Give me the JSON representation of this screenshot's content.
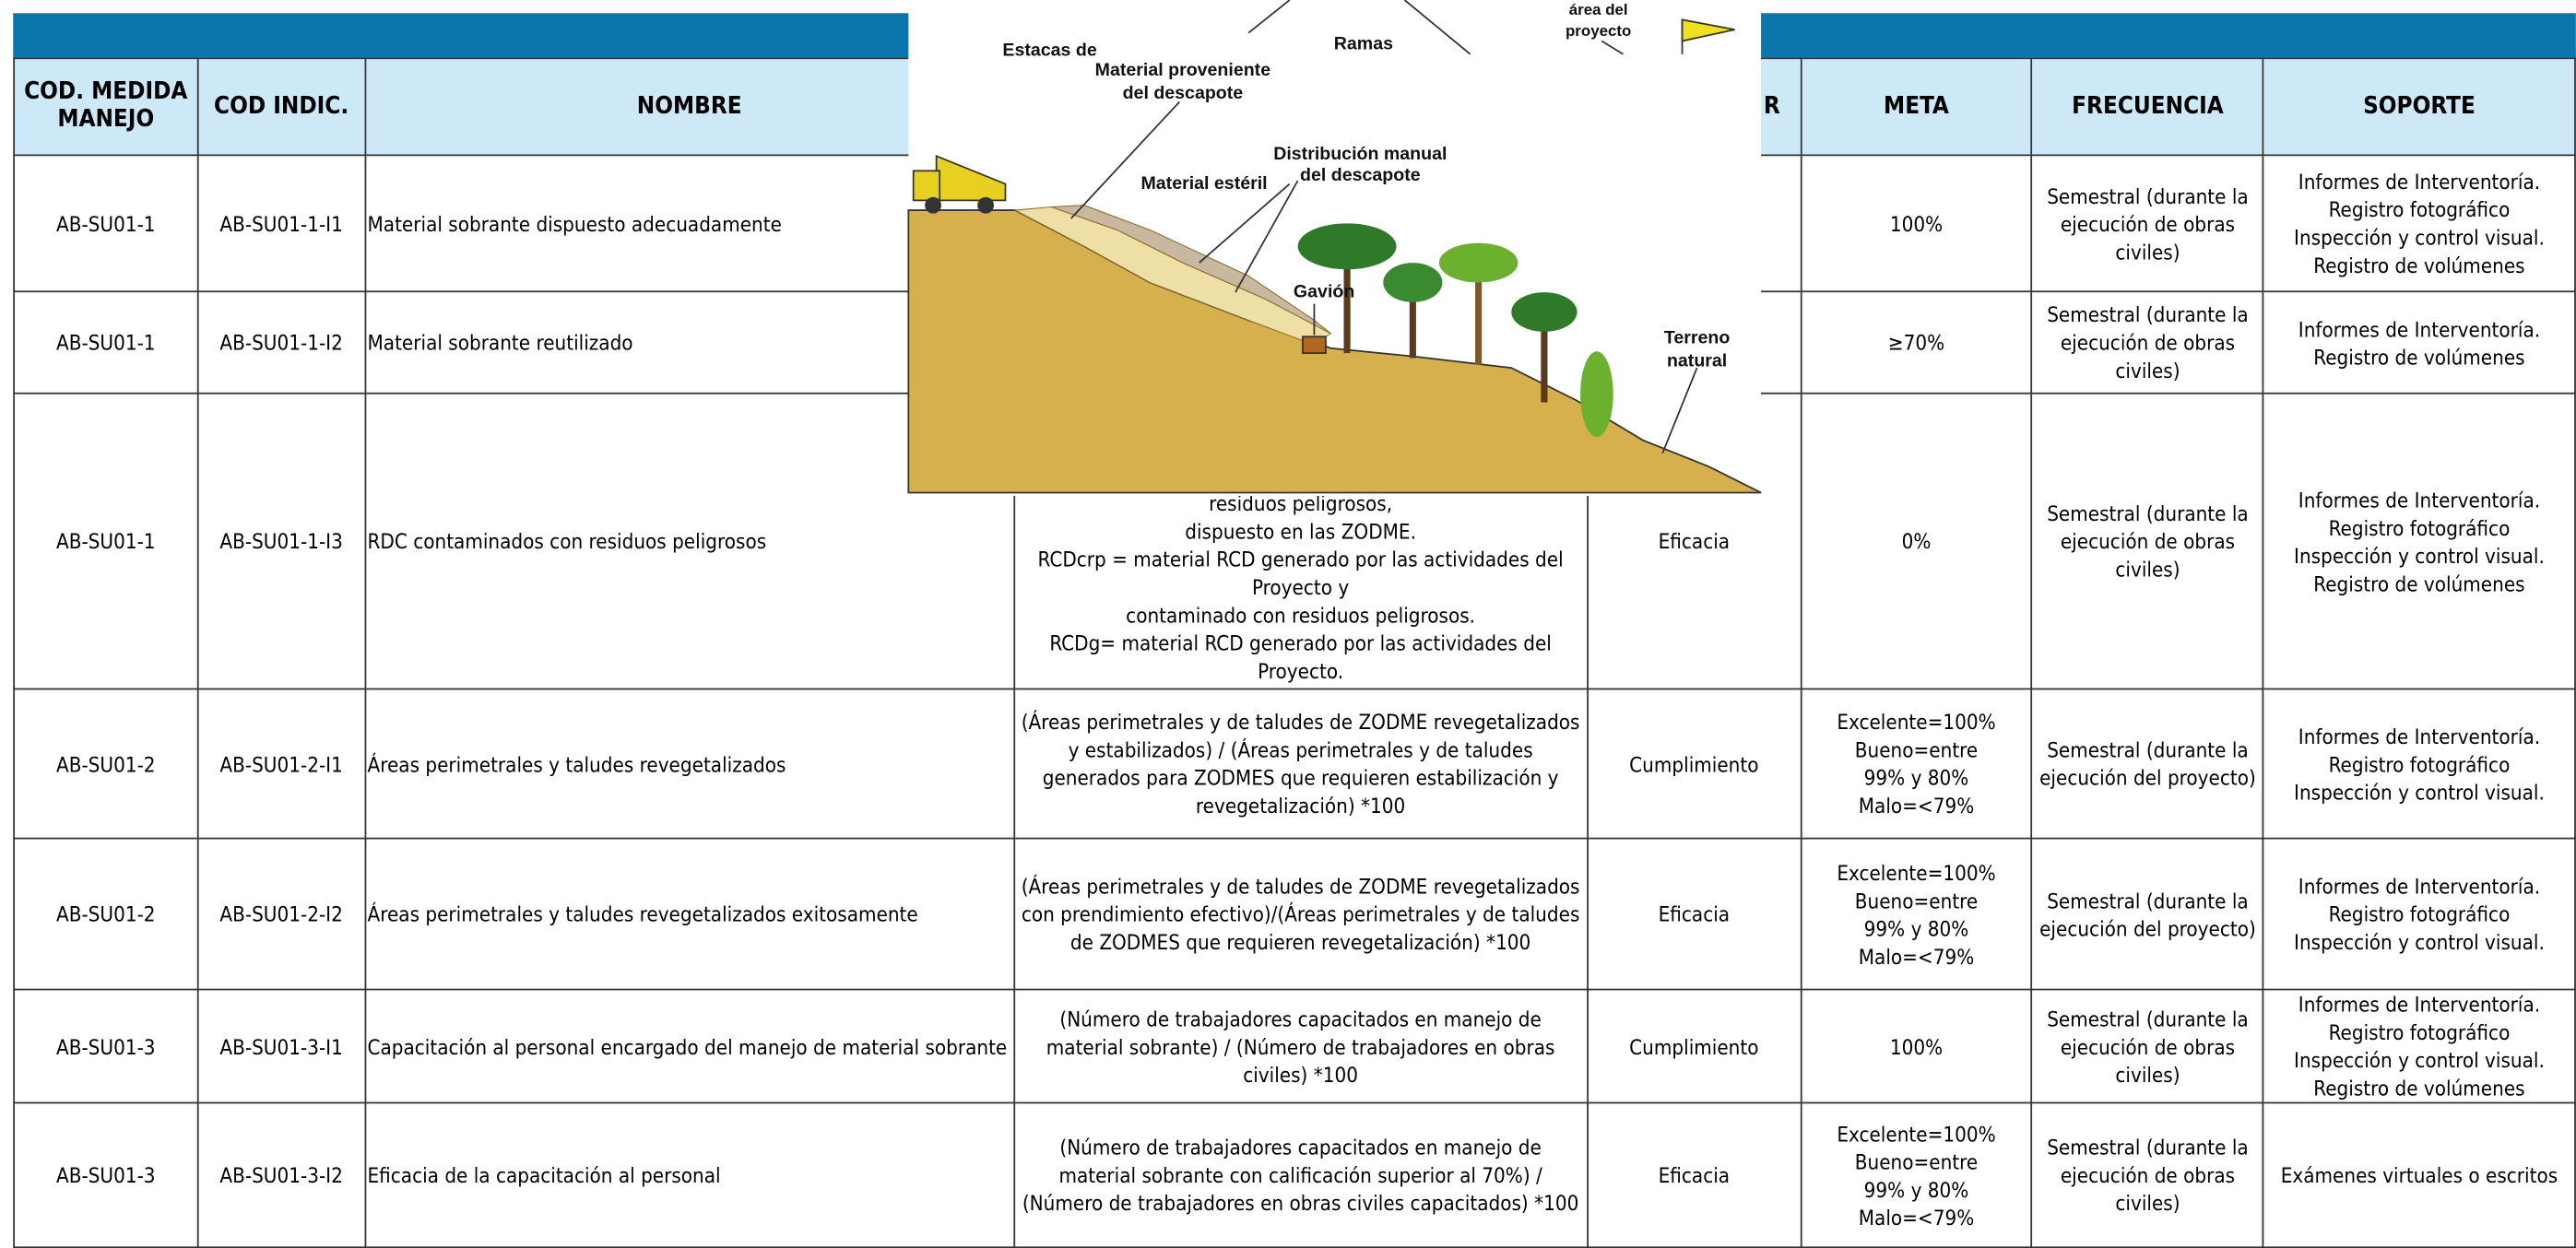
{
  "header": {
    "cod_medida": "COD. MEDIDA\nMANEJO",
    "cod_indic": "COD INDIC.",
    "nombre": "NOMBRE",
    "tipo": "R",
    "meta": "META",
    "frecuencia": "FRECUENCIA",
    "soporte": "SOPORTE"
  },
  "table": {
    "rows": [
      {
        "cod_medida": "AB-SU01-1",
        "cod_indic": "AB-SU01-1-I1",
        "nombre": "Material sobrante dispuesto adecuadamente",
        "meta": "100%",
        "frecuencia": "Semestral (durante la ejecución de obras civiles)",
        "soporte": "Informes de Interventoría.\nRegistro fotográfico\nInspección y control visual.\nRegistro de volúmenes"
      },
      {
        "cod_medida": "AB-SU01-1",
        "cod_indic": "AB-SU01-1-I2",
        "nombre": "Material sobrante reutilizado",
        "meta": "≥70%",
        "frecuencia": "Semestral (durante la ejecución de obras civiles)",
        "soporte": "Informes de Interventoría.\nRegistro de volúmenes"
      },
      {
        "cod_medida": "AB-SU01-1",
        "cod_indic": "AB-SU01-1-I3",
        "nombre": "RDC contaminados con residuos peligrosos",
        "formula": "residuos peligrosos,\ndispuesto en las ZODME.\nRCDcrp = material RCD generado por las actividades del Proyecto y\ncontaminado con residuos peligrosos.\nRCDg= material RCD generado por las actividades del Proyecto.",
        "tipo": "Eficacia",
        "meta": "0%",
        "frecuencia": "Semestral (durante la ejecución de obras civiles)",
        "soporte": "Informes de Interventoría.\nRegistro fotográfico\nInspección y control visual.\nRegistro de volúmenes"
      },
      {
        "cod_medida": "AB-SU01-2",
        "cod_indic": "AB-SU01-2-I1",
        "nombre": "Áreas perimetrales y taludes revegetalizados",
        "formula": "(Áreas perimetrales y de taludes de ZODME revegetalizados y estabilizados) / (Áreas perimetrales y de taludes generados para ZODMES que requieren estabilización y revegetalización) *100",
        "tipo": "Cumplimiento",
        "meta": "Excelente=100%\nBueno=entre\n99% y 80%\nMalo=<79%",
        "frecuencia": "Semestral (durante la ejecución del proyecto)",
        "soporte": "Informes de Interventoría.\nRegistro fotográfico\nInspección y control visual."
      },
      {
        "cod_medida": "AB-SU01-2",
        "cod_indic": "AB-SU01-2-I2",
        "nombre": "Áreas perimetrales y taludes revegetalizados exitosamente",
        "formula": "(Áreas perimetrales y de taludes de ZODME revegetalizados con prendimiento efectivo)/(Áreas perimetrales y de taludes de ZODMES que requieren revegetalización) *100",
        "tipo": "Eficacia",
        "meta": "Excelente=100%\nBueno=entre\n99% y 80%\nMalo=<79%",
        "frecuencia": "Semestral (durante la ejecución del proyecto)",
        "soporte": "Informes de Interventoría.\nRegistro fotográfico\nInspección y control visual."
      },
      {
        "cod_medida": "AB-SU01-3",
        "cod_indic": "AB-SU01-3-I1",
        "nombre": "Capacitación al personal encargado del manejo de material sobrante",
        "formula": "(Número de trabajadores capacitados en manejo de material sobrante) / (Número de trabajadores en obras civiles) *100",
        "tipo": "Cumplimiento",
        "meta": "100%",
        "frecuencia": "Semestral (durante la ejecución de obras civiles)",
        "soporte": "Informes de Interventoría.\nRegistro fotográfico\nInspección y control visual.\nRegistro de volúmenes"
      },
      {
        "cod_medida": "AB-SU01-3",
        "cod_indic": "AB-SU01-3-I2",
        "nombre": "Eficacia de la capacitación al personal",
        "formula": "(Número de trabajadores capacitados en manejo de material sobrante con calificación superior al 70%) / (Número de trabajadores en obras civiles capacitados) *100",
        "tipo": "Eficacia",
        "meta": "Excelente=100%\nBueno=entre\n99% y 80%\nMalo=<79%",
        "frecuencia": "Semestral (durante la ejecución de obras civiles)",
        "soporte": "Exámenes virtuales o escritos"
      }
    ]
  },
  "figure": {
    "labels": [
      "Estacas de",
      "Material proveniente",
      "del descapote",
      "Ramas",
      "área del",
      "proyecto",
      "Distribución manual",
      "del descapote",
      "Material estéril",
      "Gavión",
      "Terreno",
      "natural"
    ]
  }
}
